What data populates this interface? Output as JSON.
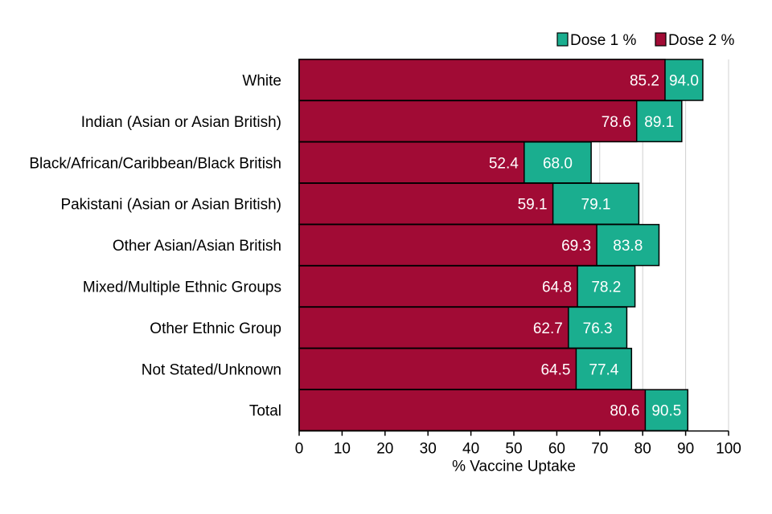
{
  "chart_data": {
    "type": "bar",
    "orientation": "horizontal",
    "title": "",
    "xlabel": "% Vaccine Uptake",
    "ylabel": "",
    "xlim": [
      0,
      100
    ],
    "xticks": [
      0,
      10,
      20,
      30,
      40,
      50,
      60,
      70,
      80,
      90,
      100
    ],
    "grid": "vertical",
    "legend_position": "top-right",
    "categories": [
      "White",
      "Indian (Asian or Asian British)",
      "Black/African/Caribbean/Black British",
      "Pakistani (Asian or Asian British)",
      "Other Asian/Asian British",
      "Mixed/Multiple Ethnic Groups",
      "Other Ethnic Group",
      "Not Stated/Unknown",
      "Total"
    ],
    "series": [
      {
        "name": "Dose 1 %",
        "color": "#1aae8f",
        "values": [
          94.0,
          89.1,
          68.0,
          79.1,
          83.8,
          78.2,
          76.3,
          77.4,
          90.5
        ],
        "labels": [
          "94.0",
          "89.1",
          "68.0",
          "79.1",
          "83.8",
          "78.2",
          "76.3",
          "77.4",
          "90.5"
        ]
      },
      {
        "name": "Dose 2 %",
        "color": "#a10b35",
        "values": [
          85.2,
          78.6,
          52.4,
          59.1,
          69.3,
          64.8,
          62.7,
          64.5,
          80.6
        ],
        "labels": [
          "85.2",
          "78.6",
          "52.4",
          "59.1",
          "69.3",
          "64.8",
          "62.7",
          "64.5",
          "80.6"
        ]
      }
    ]
  }
}
